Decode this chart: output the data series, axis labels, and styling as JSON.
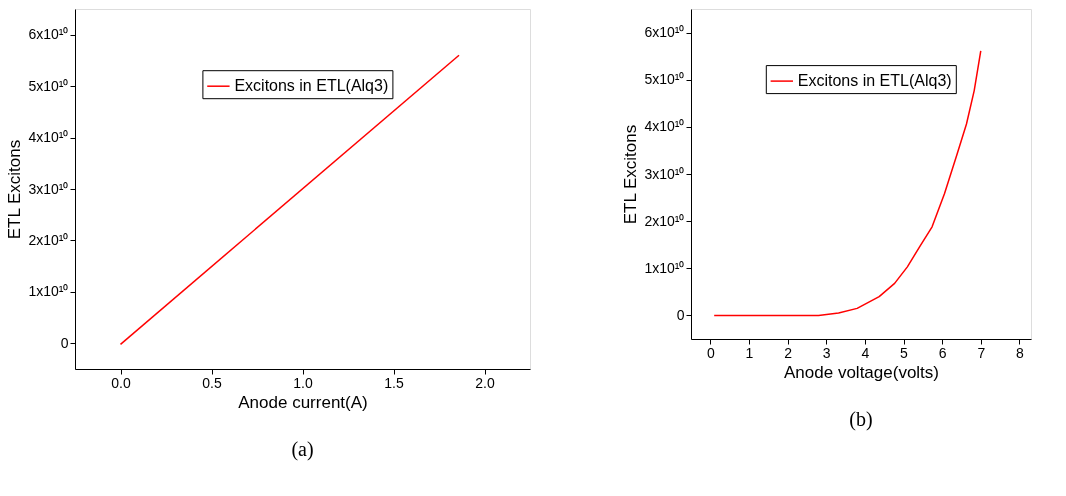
{
  "chart_data": [
    {
      "type": "line",
      "xlabel": "Anode current(A)",
      "ylabel": "ETL Excitons",
      "annotations": [
        "(a)"
      ],
      "legend": "top",
      "grid": false,
      "marker": "none",
      "line_style": "solid",
      "xlim": [
        -0.25,
        2.25
      ],
      "xticks": [
        {
          "value": 0,
          "label": "0.0"
        },
        0.5,
        {
          "value": 1,
          "label": "1.0"
        },
        1.5,
        {
          "value": 2,
          "label": "2.0"
        }
      ],
      "ylim": [
        -5000000000,
        65000000000
      ],
      "yticks": [
        0,
        {
          "value": 10000000000,
          "label": "1x10¹⁰"
        },
        {
          "value": 20000000000,
          "label": "2x10¹⁰"
        },
        {
          "value": 30000000000,
          "label": "3x10¹⁰"
        },
        {
          "value": 40000000000,
          "label": "4x10¹⁰"
        },
        {
          "value": 50000000000,
          "label": "5x10¹⁰"
        },
        {
          "value": 60000000000,
          "label": "6x10¹⁰"
        }
      ],
      "series": [
        {
          "name": "Excitons in ETL(Alq3)",
          "color": "#ff0000",
          "x": [
            0,
            1.86
          ],
          "values": [
            -200000000,
            56000000000
          ]
        }
      ]
    },
    {
      "type": "line",
      "xlabel": "Anode voltage(volts)",
      "ylabel": "ETL Excitons",
      "annotations": [
        "(b)"
      ],
      "legend": "top right",
      "grid": false,
      "marker": "none",
      "line_style": "solid",
      "xlim": [
        -0.5,
        8.3
      ],
      "xticks": [
        0,
        1,
        2,
        3,
        4,
        5,
        6,
        7,
        8
      ],
      "ylim": [
        -5000000000,
        65000000000
      ],
      "yticks": [
        0,
        {
          "value": 10000000000,
          "label": "1x10¹⁰"
        },
        {
          "value": 20000000000,
          "label": "2x10¹⁰"
        },
        {
          "value": 30000000000,
          "label": "3x10¹⁰"
        },
        {
          "value": 40000000000,
          "label": "4x10¹⁰"
        },
        {
          "value": 50000000000,
          "label": "5x10¹⁰"
        },
        {
          "value": 60000000000,
          "label": "6x10¹⁰"
        }
      ],
      "series": [
        {
          "name": "Excitons in ETL(Alq3)",
          "color": "#ff0000",
          "x": [
            0.1,
            1,
            2,
            2.8,
            3.32,
            3.8,
            4.37,
            4.77,
            5.1,
            5.42,
            5.74,
            6.06,
            6.39,
            6.63,
            6.83,
            7.0
          ],
          "values": [
            0,
            0,
            0,
            0,
            500000000,
            1500000000,
            4000000000,
            6800000000,
            10300000000,
            14600000000,
            18800000000,
            25800000000,
            34300000000,
            40600000000,
            47700000000,
            56100000000
          ]
        }
      ]
    }
  ]
}
